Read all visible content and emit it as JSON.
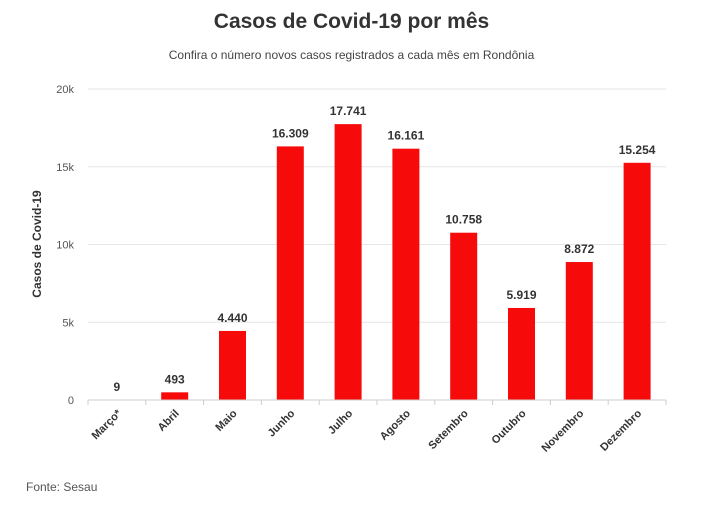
{
  "header": {
    "title": "Casos de Covid-19 por mês",
    "subtitle": "Confira o número novos casos registrados a cada mês em Rondônia"
  },
  "footer": {
    "source": "Fonte: Sesau"
  },
  "colors": {
    "bar": "#f70a0a",
    "grid": "#e6e6e6",
    "axis": "#cccccc"
  },
  "chart_data": {
    "type": "bar",
    "title": "Casos de Covid-19 por mês",
    "subtitle": "Confira o número novos casos registrados a cada mês em Rondônia",
    "xlabel": "",
    "ylabel": "Casos de Covid-19",
    "ylim": [
      0,
      20000
    ],
    "yticks": [
      0,
      5000,
      10000,
      15000,
      20000
    ],
    "ytick_labels": [
      "0",
      "5k",
      "10k",
      "15k",
      "20k"
    ],
    "grid": true,
    "categories": [
      "Março*",
      "Abril",
      "Maio",
      "Junho",
      "Julho",
      "Agosto",
      "Setembro",
      "Outubro",
      "Novembro",
      "Dezembro"
    ],
    "values": [
      9,
      493,
      4440,
      16309,
      17741,
      16161,
      10758,
      5919,
      8872,
      15254
    ],
    "data_labels": [
      "9",
      "493",
      "4.440",
      "16.309",
      "17.741",
      "16.161",
      "10.758",
      "5.919",
      "8.872",
      "15.254"
    ]
  }
}
